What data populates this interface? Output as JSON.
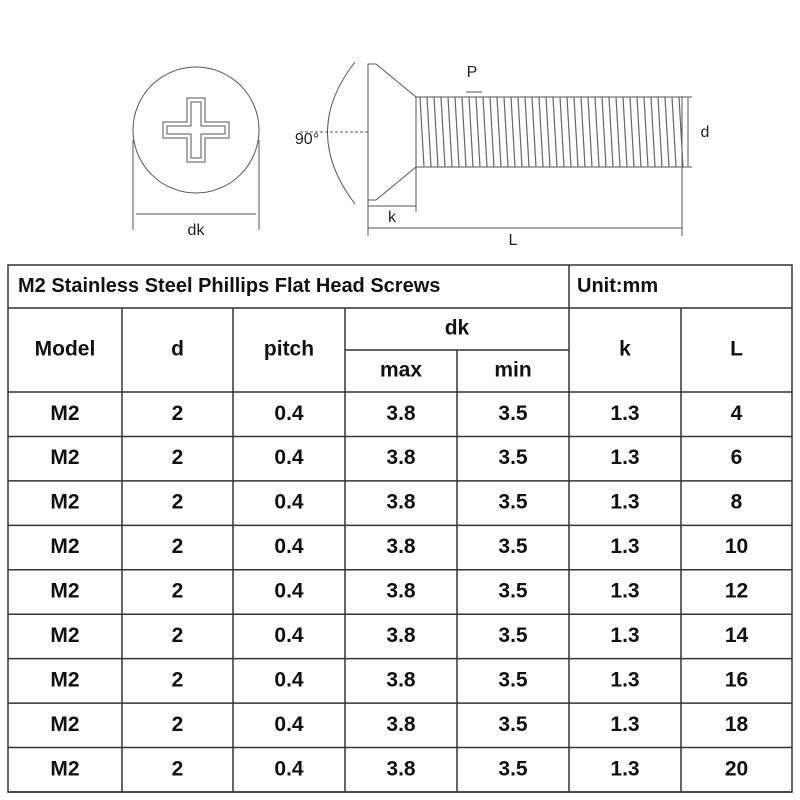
{
  "diagram": {
    "labels": {
      "dk": "dk",
      "pitch": "P",
      "angle": "90°",
      "diameter": "d",
      "head_height": "k",
      "length": "L"
    }
  },
  "table": {
    "title": "M2 Stainless Steel Phillips Flat Head Screws",
    "unit": "Unit:mm",
    "headers": [
      "Model",
      "d",
      "pitch",
      "dk",
      "k",
      "L"
    ],
    "subheaders": [
      "max",
      "min"
    ],
    "rows": [
      [
        "M2",
        "2",
        "0.4",
        "3.8",
        "3.5",
        "1.3",
        "4"
      ],
      [
        "M2",
        "2",
        "0.4",
        "3.8",
        "3.5",
        "1.3",
        "6"
      ],
      [
        "M2",
        "2",
        "0.4",
        "3.8",
        "3.5",
        "1.3",
        "8"
      ],
      [
        "M2",
        "2",
        "0.4",
        "3.8",
        "3.5",
        "1.3",
        "10"
      ],
      [
        "M2",
        "2",
        "0.4",
        "3.8",
        "3.5",
        "1.3",
        "12"
      ],
      [
        "M2",
        "2",
        "0.4",
        "3.8",
        "3.5",
        "1.3",
        "14"
      ],
      [
        "M2",
        "2",
        "0.4",
        "3.8",
        "3.5",
        "1.3",
        "16"
      ],
      [
        "M2",
        "2",
        "0.4",
        "3.8",
        "3.5",
        "1.3",
        "18"
      ],
      [
        "M2",
        "2",
        "0.4",
        "3.8",
        "3.5",
        "1.3",
        "20"
      ]
    ]
  }
}
